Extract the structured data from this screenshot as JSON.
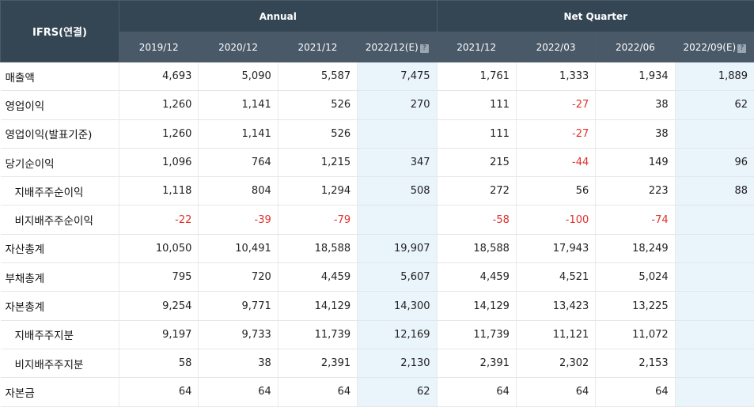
{
  "table": {
    "corner_label": "IFRS(연결)",
    "groups": [
      {
        "label": "Annual",
        "span": 4
      },
      {
        "label": "Net Quarter",
        "span": 4
      }
    ],
    "columns": [
      {
        "label": "2019/12",
        "est": false
      },
      {
        "label": "2020/12",
        "est": false
      },
      {
        "label": "2021/12",
        "est": false
      },
      {
        "label": "2022/12(E)",
        "est": true,
        "help_icon": "?"
      },
      {
        "label": "2021/12",
        "est": false
      },
      {
        "label": "2022/03",
        "est": false
      },
      {
        "label": "2022/06",
        "est": false
      },
      {
        "label": "2022/09(E)",
        "est": true,
        "help_icon": "?"
      }
    ],
    "rows": [
      {
        "label": "매출액",
        "sub": false,
        "values": [
          "4,693",
          "5,090",
          "5,587",
          "7,475",
          "1,761",
          "1,333",
          "1,934",
          "1,889"
        ]
      },
      {
        "label": "영업이익",
        "sub": false,
        "values": [
          "1,260",
          "1,141",
          "526",
          "270",
          "111",
          "-27",
          "38",
          "62"
        ]
      },
      {
        "label": "영업이익(발표기준)",
        "sub": false,
        "values": [
          "1,260",
          "1,141",
          "526",
          "",
          "111",
          "-27",
          "38",
          ""
        ]
      },
      {
        "label": "당기순이익",
        "sub": false,
        "values": [
          "1,096",
          "764",
          "1,215",
          "347",
          "215",
          "-44",
          "149",
          "96"
        ]
      },
      {
        "label": "지배주주순이익",
        "sub": true,
        "values": [
          "1,118",
          "804",
          "1,294",
          "508",
          "272",
          "56",
          "223",
          "88"
        ]
      },
      {
        "label": "비지배주주순이익",
        "sub": true,
        "values": [
          "-22",
          "-39",
          "-79",
          "",
          "-58",
          "-100",
          "-74",
          ""
        ]
      },
      {
        "label": "자산총계",
        "sub": false,
        "values": [
          "10,050",
          "10,491",
          "18,588",
          "19,907",
          "18,588",
          "17,943",
          "18,249",
          ""
        ]
      },
      {
        "label": "부채총계",
        "sub": false,
        "values": [
          "795",
          "720",
          "4,459",
          "5,607",
          "4,459",
          "4,521",
          "5,024",
          ""
        ]
      },
      {
        "label": "자본총계",
        "sub": false,
        "values": [
          "9,254",
          "9,771",
          "14,129",
          "14,300",
          "14,129",
          "13,423",
          "13,225",
          ""
        ]
      },
      {
        "label": "지배주주지분",
        "sub": true,
        "values": [
          "9,197",
          "9,733",
          "11,739",
          "12,169",
          "11,739",
          "11,121",
          "11,072",
          ""
        ]
      },
      {
        "label": "비지배주주지분",
        "sub": true,
        "values": [
          "58",
          "38",
          "2,391",
          "2,130",
          "2,391",
          "2,302",
          "2,153",
          ""
        ]
      },
      {
        "label": "자본금",
        "sub": false,
        "values": [
          "64",
          "64",
          "64",
          "62",
          "64",
          "64",
          "64",
          ""
        ]
      }
    ]
  },
  "colors": {
    "header_bg": "#344554",
    "estimate_bg": "#eaf4fb",
    "negative": "#e0302a"
  }
}
